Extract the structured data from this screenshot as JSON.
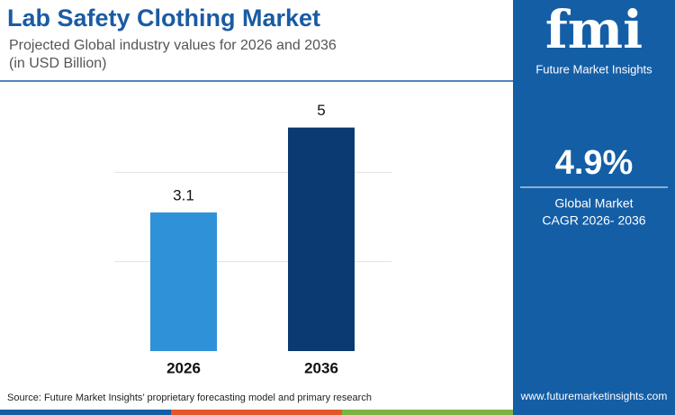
{
  "chart_data": {
    "type": "bar",
    "title": "Lab Safety Clothing Market",
    "subtitle": [
      "Projected Global industry values for 2026 and 2036",
      "(in USD Billion)"
    ],
    "categories": [
      "2026",
      "2036"
    ],
    "values": [
      3.1,
      5
    ],
    "colors": [
      "#2f91d8",
      "#0b3a72"
    ],
    "ylim": [
      0,
      6
    ],
    "yticks": [
      2,
      4
    ],
    "grid": true,
    "source": "Source: Future Market Insights’ proprietary forecasting model and primary research"
  },
  "sidebar": {
    "logo": "fmi",
    "brand": "Future Market Insights",
    "cagr": "4.9%",
    "cagr_label": [
      "Global Market",
      "CAGR 2026- 2036"
    ],
    "website": "www.futuremarketinsights.com"
  }
}
